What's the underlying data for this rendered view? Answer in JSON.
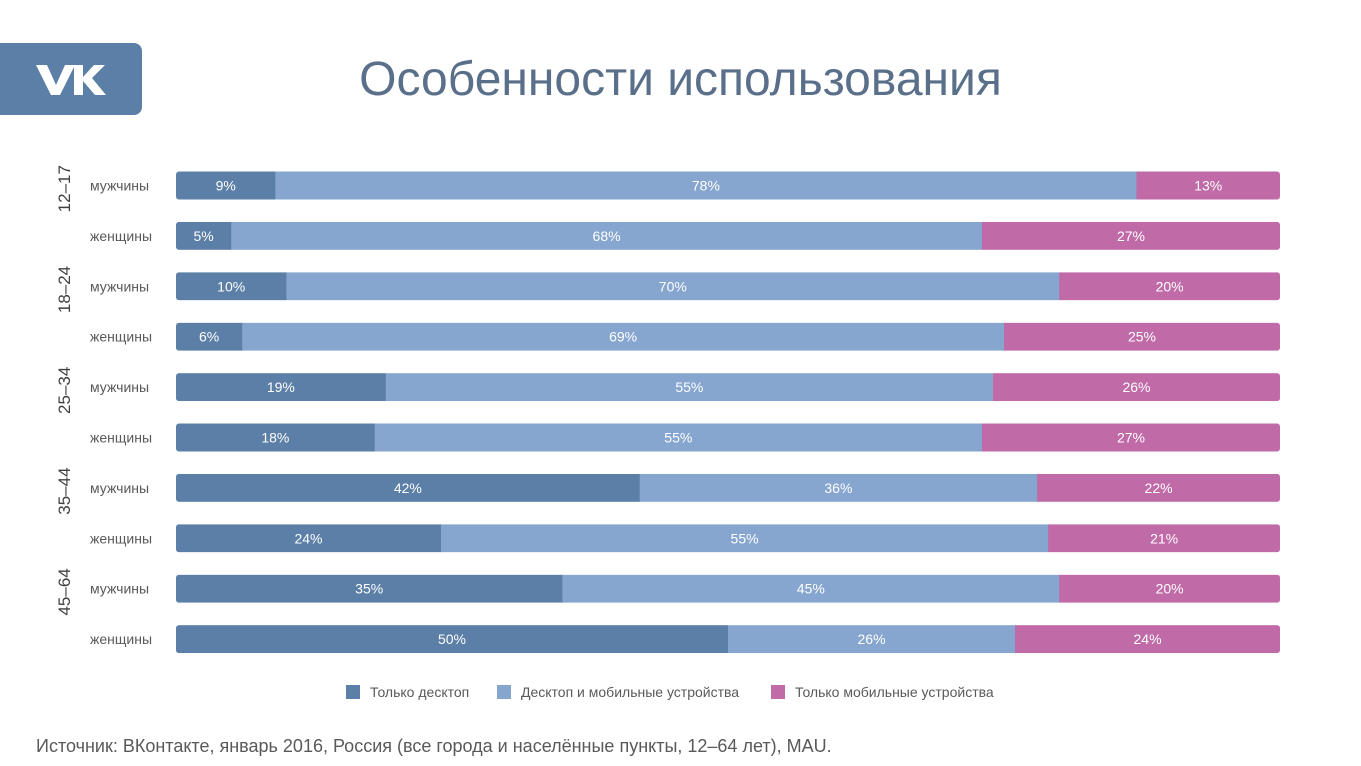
{
  "title": "Особенности использования",
  "logo_text": "VK",
  "source": "Источник: ВКонтакте, январь 2016, Россия (все города и населённые пункты, 12–64 лет), MAU.",
  "colors": {
    "desktop": "#5b7fa6",
    "both": "#86a6cf",
    "mobile": "#c06aa8",
    "bar_text": "#ffffff",
    "label_text": "#595959"
  },
  "chart_data": {
    "type": "bar",
    "orientation": "horizontal",
    "stacked": true,
    "percent": true,
    "title": "Особенности использования",
    "groups": [
      {
        "label": "12–17",
        "rows": [
          0,
          1
        ]
      },
      {
        "label": "18–24",
        "rows": [
          2,
          3
        ]
      },
      {
        "label": "25–34",
        "rows": [
          4,
          5
        ]
      },
      {
        "label": "35–44",
        "rows": [
          6,
          7
        ]
      },
      {
        "label": "45–64",
        "rows": [
          8,
          9
        ]
      }
    ],
    "categories": [
      "мужчины",
      "женщины",
      "мужчины",
      "женщины",
      "мужчины",
      "женщины",
      "мужчины",
      "женщины",
      "мужчины",
      "женщины"
    ],
    "series": [
      {
        "name": "Только десктоп",
        "color_key": "desktop",
        "values": [
          9,
          5,
          10,
          6,
          19,
          18,
          42,
          24,
          35,
          50
        ]
      },
      {
        "name": "Десктоп и мобильные устройства",
        "color_key": "both",
        "values": [
          78,
          68,
          70,
          69,
          55,
          55,
          36,
          55,
          45,
          26
        ]
      },
      {
        "name": "Только мобильные устройства",
        "color_key": "mobile",
        "values": [
          13,
          27,
          20,
          25,
          26,
          27,
          22,
          21,
          20,
          24
        ]
      }
    ],
    "value_suffix": "%",
    "legend_position": "bottom",
    "grid": false
  }
}
